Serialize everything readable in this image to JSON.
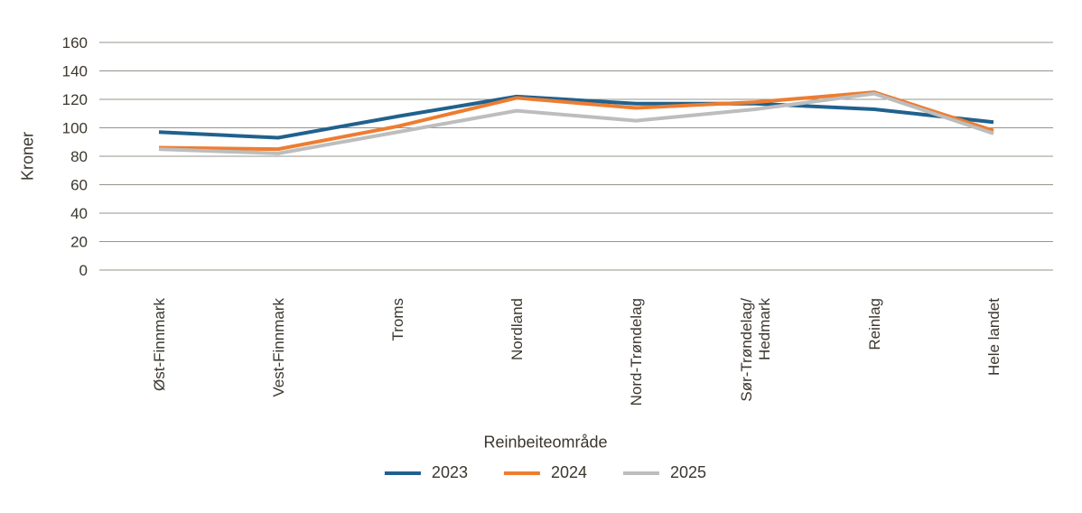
{
  "chart_data": {
    "type": "line",
    "title": "",
    "xlabel": "Reinbeiteområde",
    "ylabel": "Kroner",
    "categories": [
      "Øst-Finnmark",
      "Vest-Finnmark",
      "Troms",
      "Nordland",
      "Nord-Trøndelag",
      "Sør-Trøndelag/Hedmark",
      "Reinlag",
      "Hele landet"
    ],
    "category_display": [
      [
        "Øst-Finnmark"
      ],
      [
        "Vest-Finnmark"
      ],
      [
        "Troms"
      ],
      [
        "Nordland"
      ],
      [
        "Nord-Trøndelag"
      ],
      [
        "Sør-Trøndelag/",
        "Hedmark"
      ],
      [
        "Reinlag"
      ],
      [
        "Hele landet"
      ]
    ],
    "series": [
      {
        "name": "2023",
        "color": "#20618E",
        "values": [
          97,
          93,
          108,
          122,
          117,
          117,
          113,
          104
        ]
      },
      {
        "name": "2024",
        "color": "#ED7D31",
        "values": [
          86,
          85,
          101,
          121,
          114,
          118,
          125,
          98
        ]
      },
      {
        "name": "2025",
        "color": "#BDBDBD",
        "values": [
          85,
          82,
          97,
          112,
          105,
          113,
          124,
          96
        ]
      }
    ],
    "ylim": [
      0,
      160
    ],
    "ytick_step": 20,
    "grid": "horizontal",
    "legend_position": "bottom",
    "colors": {
      "gridline": "#96948B",
      "text": "#3B372E",
      "background": "#FFFFFF"
    }
  }
}
